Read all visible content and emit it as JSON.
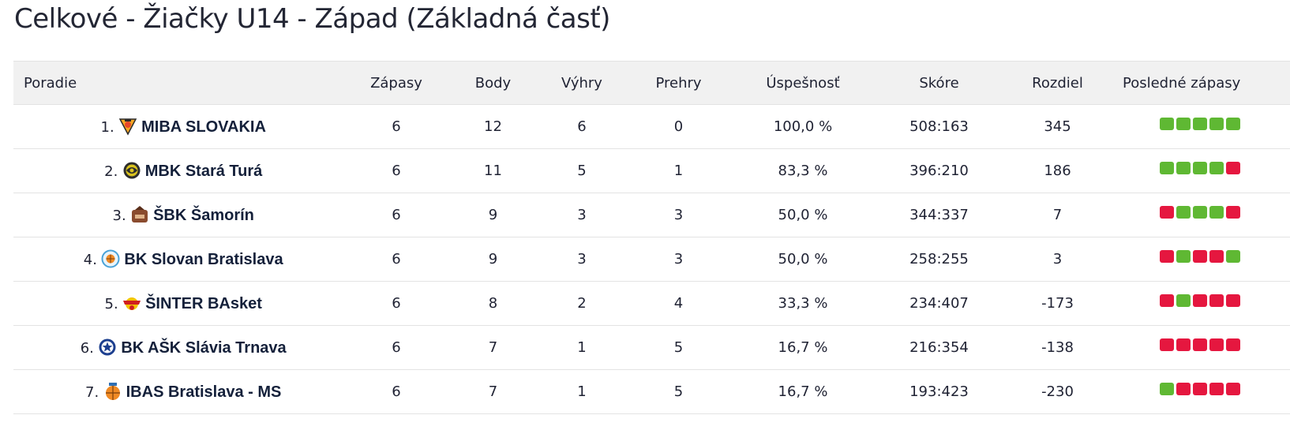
{
  "page": {
    "title": "Celkové - Žiačky U14 - Západ (Základná časť)"
  },
  "colors": {
    "win": "#5fb833",
    "loss": "#e5173f"
  },
  "table": {
    "headers": {
      "team": "Poradie",
      "games": "Zápasy",
      "points": "Body",
      "wins": "Výhry",
      "losses": "Prehry",
      "pct": "Úspešnosť",
      "score": "Skóre",
      "diff": "Rozdiel",
      "last": "Posledné zápasy"
    },
    "rows": [
      {
        "rank": "1.",
        "logo_icon": "miba-slovakia-logo-icon",
        "team": "MIBA SLOVAKIA",
        "games": "6",
        "points": "12",
        "wins": "6",
        "losses": "0",
        "pct": "100,0 %",
        "score": "508:163",
        "diff": "345",
        "last": [
          "W",
          "W",
          "W",
          "W",
          "W"
        ]
      },
      {
        "rank": "2.",
        "logo_icon": "mbk-stara-tura-logo-icon",
        "team": "MBK Stará Turá",
        "games": "6",
        "points": "11",
        "wins": "5",
        "losses": "1",
        "pct": "83,3 %",
        "score": "396:210",
        "diff": "186",
        "last": [
          "W",
          "W",
          "W",
          "W",
          "L"
        ]
      },
      {
        "rank": "3.",
        "logo_icon": "sbk-samorin-logo-icon",
        "team": "ŠBK Šamorín",
        "games": "6",
        "points": "9",
        "wins": "3",
        "losses": "3",
        "pct": "50,0 %",
        "score": "344:337",
        "diff": "7",
        "last": [
          "L",
          "W",
          "W",
          "W",
          "L"
        ]
      },
      {
        "rank": "4.",
        "logo_icon": "bk-slovan-bratislava-logo-icon",
        "team": "BK Slovan Bratislava",
        "games": "6",
        "points": "9",
        "wins": "3",
        "losses": "3",
        "pct": "50,0 %",
        "score": "258:255",
        "diff": "3",
        "last": [
          "L",
          "W",
          "L",
          "L",
          "W"
        ]
      },
      {
        "rank": "5.",
        "logo_icon": "sinter-basket-logo-icon",
        "team": "ŠINTER BAsket",
        "games": "6",
        "points": "8",
        "wins": "2",
        "losses": "4",
        "pct": "33,3 %",
        "score": "234:407",
        "diff": "-173",
        "last": [
          "L",
          "W",
          "L",
          "L",
          "L"
        ]
      },
      {
        "rank": "6.",
        "logo_icon": "bk-ask-slavia-trnava-logo-icon",
        "team": "BK AŠK Slávia Trnava",
        "games": "6",
        "points": "7",
        "wins": "1",
        "losses": "5",
        "pct": "16,7 %",
        "score": "216:354",
        "diff": "-138",
        "last": [
          "L",
          "L",
          "L",
          "L",
          "L"
        ]
      },
      {
        "rank": "7.",
        "logo_icon": "ibas-bratislava-logo-icon",
        "team": "IBAS Bratislava - MS",
        "games": "6",
        "points": "7",
        "wins": "1",
        "losses": "5",
        "pct": "16,7 %",
        "score": "193:423",
        "diff": "-230",
        "last": [
          "W",
          "L",
          "L",
          "L",
          "L"
        ]
      }
    ]
  }
}
